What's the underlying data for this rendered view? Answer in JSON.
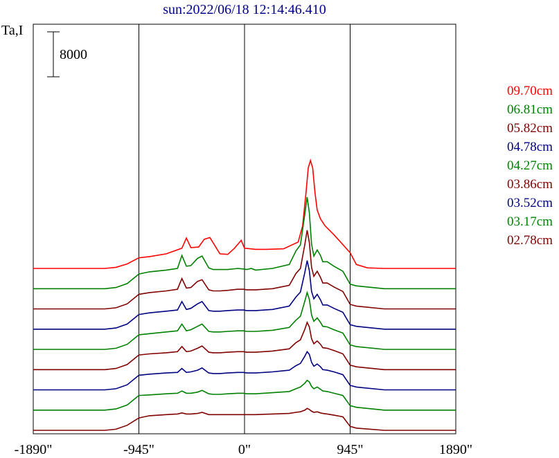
{
  "chart_data": {
    "type": "line",
    "title": "sun:2022/06/18 12:14:46.410",
    "ylabel": "Ta,I",
    "xlim": [
      -1890,
      1890
    ],
    "x_ticks": [
      {
        "value": -1890,
        "label": "-1890\""
      },
      {
        "value": -945,
        "label": "-945\""
      },
      {
        "value": 0,
        "label": "0\""
      },
      {
        "value": 945,
        "label": "945\""
      },
      {
        "value": 1890,
        "label": "1890\""
      }
    ],
    "vertical_markers": [
      -945,
      0,
      945
    ],
    "scale_bar": {
      "label": "8000",
      "value": 8000
    },
    "curve_offset_step": 3600,
    "grid": false,
    "legend_position": "right",
    "series": [
      {
        "name": "09.70cm",
        "color": "#ff0000",
        "baseline": 0,
        "x": [
          -1890,
          -1250,
          -1150,
          -1050,
          -945,
          -850,
          -700,
          -560,
          -520,
          -480,
          -410,
          -360,
          -310,
          -220,
          -150,
          -90,
          -30,
          0,
          50,
          100,
          200,
          350,
          480,
          520,
          550,
          570,
          590,
          610,
          630,
          650,
          680,
          720,
          800,
          900,
          945,
          1000,
          1100,
          1250,
          1890
        ],
        "y": [
          0,
          0,
          200,
          800,
          1900,
          2100,
          2600,
          3600,
          5400,
          3700,
          3800,
          5200,
          5500,
          2600,
          2500,
          3600,
          5000,
          3600,
          3500,
          3400,
          3400,
          3500,
          4700,
          7600,
          13500,
          17900,
          19200,
          17900,
          13500,
          10400,
          8800,
          7600,
          6000,
          3800,
          2800,
          700,
          100,
          0,
          0
        ]
      },
      {
        "name": "06.81cm",
        "color": "#008000",
        "baseline": 0,
        "x": [
          -1890,
          -1250,
          -1150,
          -1050,
          -945,
          -850,
          -700,
          -600,
          -560,
          -520,
          -480,
          -420,
          -380,
          -320,
          -280,
          -220,
          -150,
          -60,
          -10,
          20,
          60,
          100,
          250,
          400,
          460,
          500,
          540,
          560,
          580,
          600,
          620,
          650,
          680,
          700,
          740,
          800,
          880,
          945,
          1000,
          1250,
          1890
        ],
        "y": [
          0,
          0,
          200,
          900,
          2600,
          3000,
          3300,
          3600,
          5900,
          4000,
          4100,
          5400,
          5800,
          3700,
          3400,
          3400,
          3400,
          3600,
          3500,
          3400,
          3600,
          3300,
          3600,
          4300,
          6700,
          7800,
          13300,
          16300,
          13500,
          7900,
          5800,
          6900,
          5900,
          4800,
          4800,
          4000,
          3100,
          800,
          500,
          0,
          0
        ]
      },
      {
        "name": "05.82cm",
        "color": "#800000",
        "baseline": 0,
        "x": [
          -1890,
          -1250,
          -1150,
          -1050,
          -945,
          -850,
          -700,
          -600,
          -560,
          -520,
          -480,
          -420,
          -380,
          -320,
          -280,
          -220,
          -150,
          -60,
          -10,
          20,
          60,
          100,
          250,
          400,
          460,
          500,
          540,
          560,
          580,
          600,
          620,
          650,
          680,
          700,
          740,
          800,
          880,
          945,
          1000,
          1250,
          1890
        ],
        "y": [
          0,
          0,
          200,
          900,
          2600,
          2900,
          3200,
          3500,
          5400,
          3700,
          3800,
          4900,
          5200,
          3400,
          3200,
          3200,
          3300,
          3500,
          3500,
          3400,
          3400,
          3400,
          3600,
          4200,
          6300,
          7200,
          11500,
          14000,
          11800,
          7400,
          5800,
          6700,
          5600,
          4600,
          4600,
          3900,
          3100,
          800,
          500,
          0,
          0
        ]
      },
      {
        "name": "04.78cm",
        "color": "#000080",
        "baseline": 0,
        "x": [
          -1890,
          -1250,
          -1150,
          -1050,
          -945,
          -850,
          -700,
          -600,
          -560,
          -520,
          -480,
          -420,
          -380,
          -320,
          -280,
          -220,
          -150,
          -60,
          -10,
          20,
          60,
          100,
          250,
          400,
          460,
          500,
          540,
          560,
          580,
          600,
          620,
          650,
          680,
          700,
          740,
          800,
          880,
          945,
          1000,
          1250,
          1890
        ],
        "y": [
          0,
          0,
          200,
          900,
          2600,
          2900,
          3200,
          3400,
          4900,
          3500,
          3700,
          4500,
          4900,
          3300,
          3200,
          3200,
          3300,
          3400,
          3400,
          3300,
          3300,
          3300,
          3500,
          4100,
          5700,
          6600,
          10100,
          12200,
          10400,
          6700,
          5400,
          6200,
          5200,
          4300,
          4300,
          3700,
          3000,
          800,
          500,
          0,
          0
        ]
      },
      {
        "name": "04.27cm",
        "color": "#008000",
        "baseline": 0,
        "x": [
          -1890,
          -1250,
          -1150,
          -1050,
          -945,
          -850,
          -700,
          -600,
          -560,
          -520,
          -480,
          -420,
          -380,
          -320,
          -280,
          -220,
          -150,
          -60,
          -10,
          20,
          60,
          100,
          250,
          400,
          460,
          500,
          540,
          560,
          580,
          600,
          620,
          650,
          680,
          700,
          740,
          800,
          880,
          945,
          1000,
          1250,
          1890
        ],
        "y": [
          0,
          0,
          200,
          900,
          2600,
          2800,
          3100,
          3300,
          4500,
          3300,
          3500,
          4100,
          4500,
          3200,
          3100,
          3100,
          3200,
          3300,
          3300,
          3200,
          3200,
          3200,
          3400,
          3900,
          5200,
          5900,
          8600,
          10100,
          8900,
          6100,
          5000,
          5600,
          4800,
          4100,
          4000,
          3500,
          2900,
          800,
          500,
          0,
          0
        ]
      },
      {
        "name": "03.86cm",
        "color": "#800000",
        "baseline": 0,
        "x": [
          -1890,
          -1250,
          -1150,
          -1050,
          -945,
          -850,
          -700,
          -600,
          -560,
          -520,
          -480,
          -420,
          -380,
          -320,
          -280,
          -220,
          -150,
          -60,
          -10,
          20,
          60,
          100,
          250,
          400,
          460,
          500,
          540,
          560,
          580,
          600,
          620,
          650,
          680,
          700,
          740,
          800,
          880,
          945,
          1000,
          1250,
          1890
        ],
        "y": [
          0,
          0,
          200,
          900,
          2600,
          2800,
          3000,
          3200,
          4100,
          3200,
          3300,
          3800,
          4200,
          3100,
          3000,
          3000,
          3100,
          3200,
          3200,
          3100,
          3100,
          3100,
          3300,
          3700,
          4800,
          5300,
          7200,
          8400,
          7600,
          5500,
          4600,
          5100,
          4500,
          3900,
          3800,
          3400,
          2800,
          800,
          500,
          0,
          0
        ]
      },
      {
        "name": "03.52cm",
        "color": "#000080",
        "baseline": 0,
        "x": [
          -1890,
          -1250,
          -1150,
          -1050,
          -945,
          -850,
          -700,
          -600,
          -560,
          -520,
          -480,
          -420,
          -380,
          -320,
          -280,
          -220,
          -150,
          -60,
          -10,
          20,
          60,
          100,
          250,
          400,
          460,
          500,
          540,
          560,
          580,
          600,
          620,
          650,
          680,
          700,
          740,
          800,
          880,
          945,
          1000,
          1250,
          1890
        ],
        "y": [
          0,
          0,
          200,
          900,
          2600,
          2800,
          3000,
          3100,
          3800,
          3100,
          3200,
          3500,
          3900,
          3000,
          2900,
          2900,
          3000,
          3100,
          3100,
          3000,
          3000,
          3000,
          3200,
          3500,
          4300,
          4700,
          6000,
          6800,
          6300,
          4900,
          4200,
          4600,
          4100,
          3600,
          3500,
          3200,
          2700,
          800,
          500,
          0,
          0
        ]
      },
      {
        "name": "03.17cm",
        "color": "#008000",
        "baseline": 0,
        "x": [
          -1890,
          -1250,
          -1150,
          -1050,
          -945,
          -850,
          -700,
          -600,
          -560,
          -520,
          -480,
          -420,
          -380,
          -320,
          -280,
          -220,
          -150,
          -60,
          -10,
          20,
          60,
          100,
          250,
          400,
          460,
          500,
          540,
          560,
          580,
          600,
          620,
          650,
          680,
          700,
          740,
          800,
          880,
          945,
          1000,
          1250,
          1890
        ],
        "y": [
          0,
          0,
          200,
          900,
          2600,
          2700,
          2900,
          3000,
          3400,
          3000,
          3000,
          3200,
          3500,
          2900,
          2800,
          2800,
          2900,
          3000,
          3000,
          2900,
          2900,
          2900,
          3100,
          3300,
          3800,
          4100,
          4800,
          5300,
          5000,
          4200,
          3800,
          4100,
          3700,
          3400,
          3300,
          3000,
          2600,
          800,
          500,
          0,
          0
        ]
      },
      {
        "name": "02.78cm",
        "color": "#800000",
        "baseline": 0,
        "x": [
          -1890,
          -1250,
          -1150,
          -1050,
          -945,
          -850,
          -700,
          -600,
          -560,
          -520,
          -480,
          -420,
          -380,
          -320,
          -280,
          -220,
          -150,
          -60,
          -10,
          20,
          60,
          100,
          250,
          400,
          460,
          500,
          540,
          560,
          580,
          600,
          620,
          650,
          680,
          700,
          740,
          800,
          880,
          945,
          1000,
          1250,
          1890
        ],
        "y": [
          0,
          0,
          200,
          900,
          2200,
          2600,
          2800,
          2900,
          3100,
          2900,
          2900,
          3000,
          3200,
          2800,
          2800,
          2800,
          2800,
          2800,
          2800,
          2800,
          2800,
          2800,
          2900,
          3000,
          3200,
          3300,
          3600,
          3900,
          3700,
          3400,
          3200,
          3300,
          3100,
          3000,
          2900,
          2700,
          2400,
          700,
          400,
          0,
          0
        ]
      }
    ]
  }
}
